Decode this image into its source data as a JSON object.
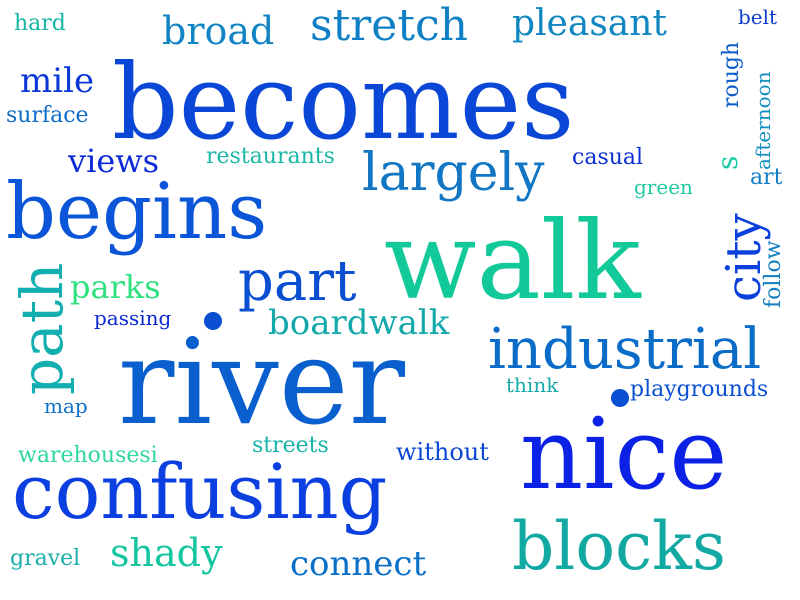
{
  "words": [
    {
      "text": "becomes",
      "color": "#0a47d6"
    },
    {
      "text": "river",
      "color": "#0a5fcf"
    },
    {
      "text": "walk",
      "color": "#12c99a"
    },
    {
      "text": "nice",
      "color": "#0b22e6"
    },
    {
      "text": "begins",
      "color": "#0b55d8"
    },
    {
      "text": "confusing",
      "color": "#0b3fe0"
    },
    {
      "text": "blocks",
      "color": "#12a9a3"
    },
    {
      "text": "industrial",
      "color": "#0a6cc9"
    },
    {
      "text": "path",
      "color": "#12aeb0"
    },
    {
      "text": "part",
      "color": "#0a4fd2"
    },
    {
      "text": "largely",
      "color": "#1176c4"
    },
    {
      "text": "city",
      "color": "#0b40dc"
    },
    {
      "text": "stretch",
      "color": "#0f7fc6"
    },
    {
      "text": "broad",
      "color": "#1283c4"
    },
    {
      "text": "pleasant",
      "color": "#1187c2"
    },
    {
      "text": "boardwalk",
      "color": "#13a8aa"
    },
    {
      "text": "shady",
      "color": "#13c6a0"
    },
    {
      "text": "connect",
      "color": "#0b6fc8"
    },
    {
      "text": "mile",
      "color": "#0b36d8"
    },
    {
      "text": "views",
      "color": "#0b2ad8"
    },
    {
      "text": "parks",
      "color": "#2fe07f"
    },
    {
      "text": "restaurants",
      "color": "#1ab7a6"
    },
    {
      "text": "casual",
      "color": "#0b2fd4"
    },
    {
      "text": "green",
      "color": "#1fcaa3"
    },
    {
      "text": "art",
      "color": "#0f7ec6"
    },
    {
      "text": "s",
      "color": "#18c9a3"
    },
    {
      "text": "follow",
      "color": "#1480c2"
    },
    {
      "text": "afternoon",
      "color": "#1390c0"
    },
    {
      "text": "rough",
      "color": "#0c5cc8"
    },
    {
      "text": "belt",
      "color": "#0b3ed0"
    },
    {
      "text": "hard",
      "color": "#16b6a4"
    },
    {
      "text": "surface",
      "color": "#0e6cc6"
    },
    {
      "text": "passing",
      "color": "#0b2ad2"
    },
    {
      "text": "map",
      "color": "#1170c6"
    },
    {
      "text": "think",
      "color": "#16aba8"
    },
    {
      "text": "playgrounds",
      "color": "#0a50d2"
    },
    {
      "text": "streets",
      "color": "#17b3a8"
    },
    {
      "text": "without",
      "color": "#0a47d2"
    },
    {
      "text": "warehousesi",
      "color": "#2fd89a"
    },
    {
      "text": "gravel",
      "color": "#1aaea8"
    }
  ]
}
